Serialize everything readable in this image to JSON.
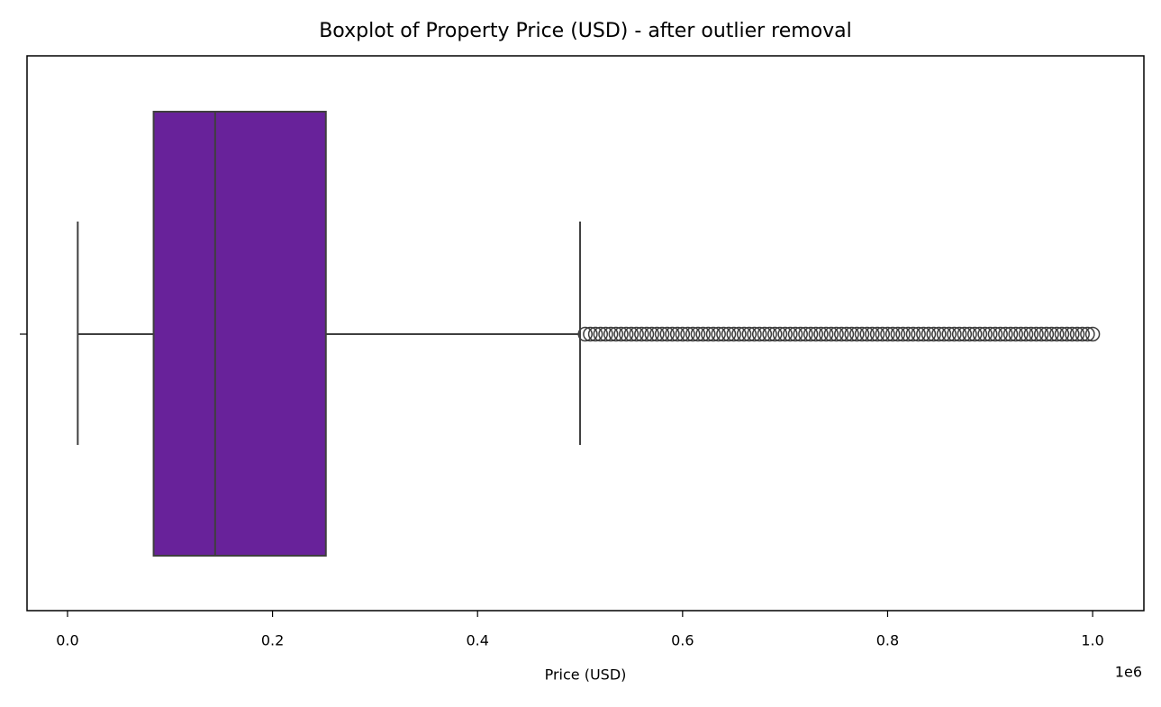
{
  "chart_data": {
    "type": "box",
    "title": "Boxplot of Property Price (USD) - after outlier removal",
    "x_label": "Price (USD)",
    "x_offset_label": "1e6",
    "xlim": [
      -39500,
      1050000
    ],
    "xticks": [
      {
        "value": 0,
        "label": "0.0"
      },
      {
        "value": 200000,
        "label": "0.2"
      },
      {
        "value": 400000,
        "label": "0.4"
      },
      {
        "value": 600000,
        "label": "0.6"
      },
      {
        "value": 800000,
        "label": "0.8"
      },
      {
        "value": 1000000,
        "label": "1.0"
      }
    ],
    "color": "#68229a",
    "edge_color": "#3f3f3f",
    "box": {
      "whislo": 10000,
      "q1": 84000,
      "med": 144000,
      "q3": 252000,
      "whishi": 500000,
      "fliers": [
        505000,
        510000,
        515000,
        520000,
        525000,
        530000,
        535000,
        540000,
        545000,
        550000,
        555000,
        560000,
        565000,
        570000,
        575000,
        580000,
        585000,
        590000,
        595000,
        600000,
        605000,
        610000,
        615000,
        620000,
        625000,
        630000,
        635000,
        640000,
        645000,
        650000,
        655000,
        660000,
        665000,
        670000,
        675000,
        680000,
        685000,
        690000,
        695000,
        700000,
        705000,
        710000,
        715000,
        720000,
        725000,
        730000,
        735000,
        740000,
        745000,
        750000,
        755000,
        760000,
        765000,
        770000,
        775000,
        780000,
        785000,
        790000,
        795000,
        800000,
        805000,
        810000,
        815000,
        820000,
        825000,
        830000,
        835000,
        840000,
        845000,
        850000,
        855000,
        860000,
        865000,
        870000,
        875000,
        880000,
        885000,
        890000,
        895000,
        900000,
        905000,
        910000,
        915000,
        920000,
        925000,
        930000,
        935000,
        940000,
        945000,
        950000,
        955000,
        960000,
        965000,
        970000,
        975000,
        980000,
        985000,
        990000,
        995000,
        1000000
      ]
    }
  }
}
